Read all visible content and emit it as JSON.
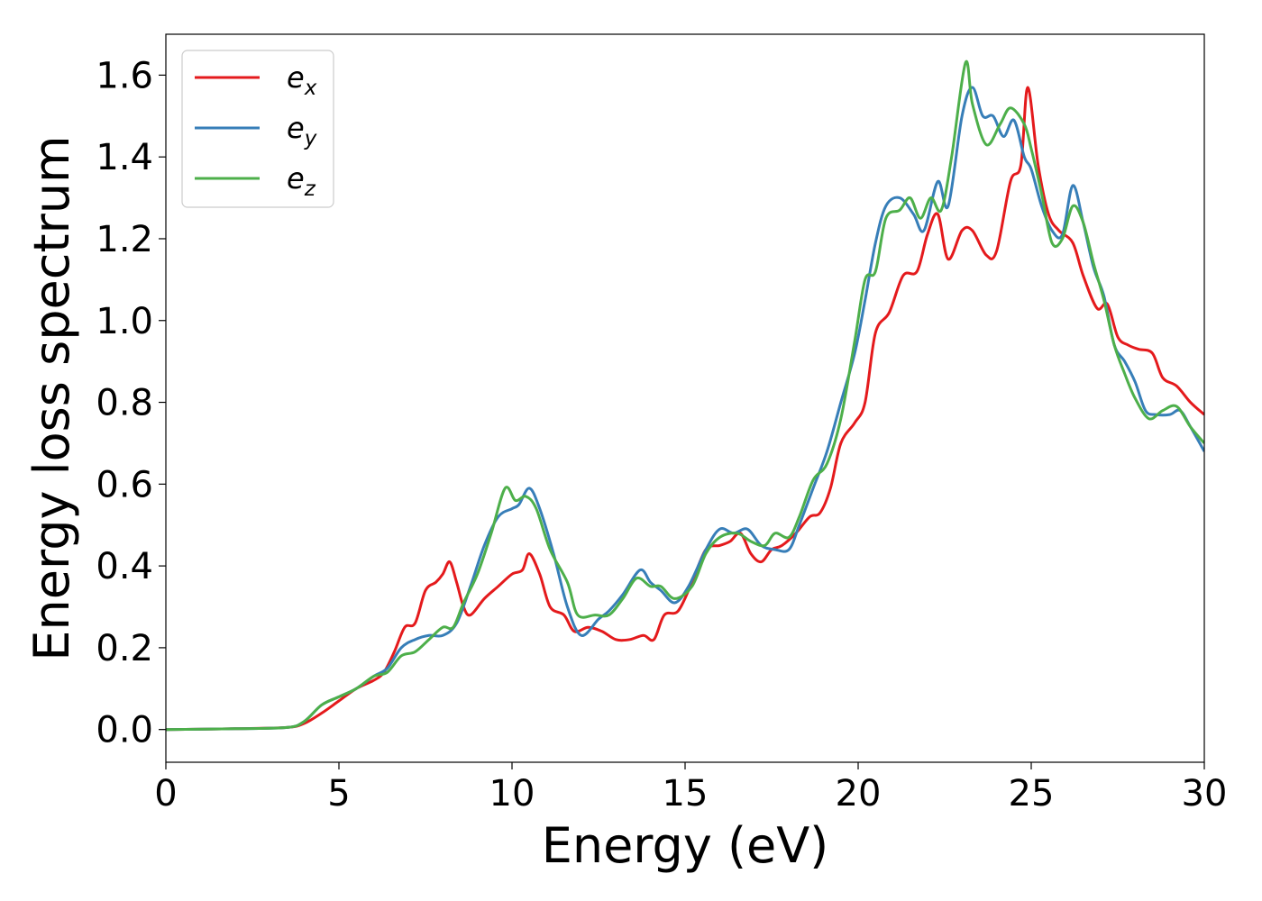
{
  "chart_data": {
    "type": "line",
    "xlabel": "Energy (eV)",
    "ylabel": "Energy loss spectrum",
    "xlim": [
      0,
      30
    ],
    "ylim": [
      -0.08,
      1.7
    ],
    "xticks": [
      0,
      5,
      10,
      15,
      20,
      25,
      30
    ],
    "xtick_labels": [
      "0",
      "5",
      "10",
      "15",
      "20",
      "25",
      "30"
    ],
    "yticks": [
      0.0,
      0.2,
      0.4,
      0.6,
      0.8,
      1.0,
      1.2,
      1.4,
      1.6
    ],
    "ytick_labels": [
      "0.0",
      "0.2",
      "0.4",
      "0.6",
      "0.8",
      "1.0",
      "1.2",
      "1.4",
      "1.6"
    ],
    "grid": false,
    "legend_position": "top-left",
    "series": [
      {
        "name": "e_x",
        "label_base": "e",
        "label_sub": "x",
        "color": "#e41a1c",
        "points": [
          [
            0,
            0.0
          ],
          [
            2,
            0.002
          ],
          [
            3.5,
            0.005
          ],
          [
            4.0,
            0.015
          ],
          [
            4.5,
            0.04
          ],
          [
            5.0,
            0.07
          ],
          [
            5.5,
            0.1
          ],
          [
            6.0,
            0.12
          ],
          [
            6.3,
            0.14
          ],
          [
            6.6,
            0.19
          ],
          [
            6.9,
            0.25
          ],
          [
            7.2,
            0.26
          ],
          [
            7.5,
            0.34
          ],
          [
            7.8,
            0.36
          ],
          [
            8.0,
            0.38
          ],
          [
            8.2,
            0.41
          ],
          [
            8.4,
            0.36
          ],
          [
            8.6,
            0.3
          ],
          [
            8.8,
            0.28
          ],
          [
            9.2,
            0.32
          ],
          [
            9.6,
            0.35
          ],
          [
            10.0,
            0.38
          ],
          [
            10.3,
            0.39
          ],
          [
            10.5,
            0.43
          ],
          [
            10.8,
            0.38
          ],
          [
            11.1,
            0.3
          ],
          [
            11.5,
            0.28
          ],
          [
            11.8,
            0.24
          ],
          [
            12.2,
            0.25
          ],
          [
            12.6,
            0.24
          ],
          [
            13.0,
            0.22
          ],
          [
            13.4,
            0.22
          ],
          [
            13.8,
            0.23
          ],
          [
            14.1,
            0.22
          ],
          [
            14.4,
            0.28
          ],
          [
            14.8,
            0.29
          ],
          [
            15.2,
            0.36
          ],
          [
            15.6,
            0.44
          ],
          [
            16.0,
            0.45
          ],
          [
            16.3,
            0.46
          ],
          [
            16.6,
            0.48
          ],
          [
            16.9,
            0.43
          ],
          [
            17.2,
            0.41
          ],
          [
            17.5,
            0.44
          ],
          [
            17.8,
            0.45
          ],
          [
            18.2,
            0.48
          ],
          [
            18.6,
            0.52
          ],
          [
            18.9,
            0.53
          ],
          [
            19.2,
            0.59
          ],
          [
            19.5,
            0.7
          ],
          [
            19.9,
            0.75
          ],
          [
            20.2,
            0.8
          ],
          [
            20.5,
            0.97
          ],
          [
            20.9,
            1.02
          ],
          [
            21.3,
            1.11
          ],
          [
            21.7,
            1.12
          ],
          [
            22.0,
            1.21
          ],
          [
            22.3,
            1.26
          ],
          [
            22.6,
            1.15
          ],
          [
            23.0,
            1.22
          ],
          [
            23.3,
            1.22
          ],
          [
            23.7,
            1.16
          ],
          [
            24.0,
            1.17
          ],
          [
            24.4,
            1.34
          ],
          [
            24.7,
            1.38
          ],
          [
            24.9,
            1.57
          ],
          [
            25.2,
            1.38
          ],
          [
            25.5,
            1.26
          ],
          [
            25.8,
            1.22
          ],
          [
            26.2,
            1.19
          ],
          [
            26.5,
            1.11
          ],
          [
            26.9,
            1.03
          ],
          [
            27.2,
            1.04
          ],
          [
            27.5,
            0.96
          ],
          [
            27.8,
            0.94
          ],
          [
            28.1,
            0.93
          ],
          [
            28.5,
            0.92
          ],
          [
            28.8,
            0.86
          ],
          [
            29.2,
            0.84
          ],
          [
            29.6,
            0.8
          ],
          [
            30.0,
            0.77
          ]
        ]
      },
      {
        "name": "e_y",
        "label_base": "e",
        "label_sub": "y",
        "color": "#377eb8",
        "points": [
          [
            0,
            0.0
          ],
          [
            2,
            0.002
          ],
          [
            3.5,
            0.005
          ],
          [
            4.0,
            0.02
          ],
          [
            4.5,
            0.06
          ],
          [
            5.0,
            0.08
          ],
          [
            5.5,
            0.1
          ],
          [
            6.0,
            0.13
          ],
          [
            6.4,
            0.15
          ],
          [
            6.8,
            0.2
          ],
          [
            7.2,
            0.22
          ],
          [
            7.6,
            0.23
          ],
          [
            8.0,
            0.23
          ],
          [
            8.4,
            0.26
          ],
          [
            8.8,
            0.35
          ],
          [
            9.2,
            0.45
          ],
          [
            9.6,
            0.52
          ],
          [
            10.0,
            0.54
          ],
          [
            10.2,
            0.55
          ],
          [
            10.5,
            0.59
          ],
          [
            10.8,
            0.54
          ],
          [
            11.2,
            0.43
          ],
          [
            11.6,
            0.3
          ],
          [
            12.0,
            0.23
          ],
          [
            12.5,
            0.27
          ],
          [
            12.8,
            0.29
          ],
          [
            13.2,
            0.33
          ],
          [
            13.7,
            0.39
          ],
          [
            14.0,
            0.36
          ],
          [
            14.3,
            0.34
          ],
          [
            14.7,
            0.31
          ],
          [
            15.1,
            0.35
          ],
          [
            15.6,
            0.44
          ],
          [
            16.0,
            0.49
          ],
          [
            16.4,
            0.48
          ],
          [
            16.8,
            0.49
          ],
          [
            17.2,
            0.45
          ],
          [
            17.6,
            0.44
          ],
          [
            18.0,
            0.44
          ],
          [
            18.3,
            0.5
          ],
          [
            18.7,
            0.59
          ],
          [
            19.1,
            0.68
          ],
          [
            19.5,
            0.8
          ],
          [
            19.9,
            0.92
          ],
          [
            20.2,
            1.05
          ],
          [
            20.5,
            1.19
          ],
          [
            20.8,
            1.28
          ],
          [
            21.2,
            1.3
          ],
          [
            21.6,
            1.26
          ],
          [
            21.9,
            1.22
          ],
          [
            22.3,
            1.34
          ],
          [
            22.6,
            1.28
          ],
          [
            23.0,
            1.5
          ],
          [
            23.3,
            1.57
          ],
          [
            23.6,
            1.5
          ],
          [
            23.9,
            1.5
          ],
          [
            24.2,
            1.45
          ],
          [
            24.5,
            1.49
          ],
          [
            24.8,
            1.4
          ],
          [
            25.0,
            1.37
          ],
          [
            25.3,
            1.28
          ],
          [
            25.6,
            1.22
          ],
          [
            25.9,
            1.21
          ],
          [
            26.2,
            1.33
          ],
          [
            26.5,
            1.24
          ],
          [
            26.8,
            1.13
          ],
          [
            27.1,
            1.06
          ],
          [
            27.4,
            0.94
          ],
          [
            27.7,
            0.9
          ],
          [
            28.0,
            0.85
          ],
          [
            28.3,
            0.78
          ],
          [
            28.6,
            0.77
          ],
          [
            29.0,
            0.77
          ],
          [
            29.3,
            0.78
          ],
          [
            29.6,
            0.74
          ],
          [
            30.0,
            0.68
          ]
        ]
      },
      {
        "name": "e_z",
        "label_base": "e",
        "label_sub": "z",
        "color": "#4daf4a",
        "points": [
          [
            0,
            0.0
          ],
          [
            2,
            0.002
          ],
          [
            3.5,
            0.005
          ],
          [
            4.0,
            0.02
          ],
          [
            4.5,
            0.06
          ],
          [
            5.0,
            0.08
          ],
          [
            5.5,
            0.1
          ],
          [
            6.0,
            0.13
          ],
          [
            6.4,
            0.14
          ],
          [
            6.8,
            0.18
          ],
          [
            7.2,
            0.19
          ],
          [
            7.6,
            0.22
          ],
          [
            8.0,
            0.25
          ],
          [
            8.3,
            0.25
          ],
          [
            8.6,
            0.31
          ],
          [
            9.0,
            0.38
          ],
          [
            9.4,
            0.48
          ],
          [
            9.8,
            0.59
          ],
          [
            10.1,
            0.56
          ],
          [
            10.4,
            0.57
          ],
          [
            10.7,
            0.54
          ],
          [
            11.1,
            0.44
          ],
          [
            11.6,
            0.36
          ],
          [
            11.9,
            0.28
          ],
          [
            12.4,
            0.28
          ],
          [
            12.8,
            0.28
          ],
          [
            13.2,
            0.32
          ],
          [
            13.6,
            0.37
          ],
          [
            14.0,
            0.35
          ],
          [
            14.3,
            0.35
          ],
          [
            14.7,
            0.32
          ],
          [
            15.2,
            0.35
          ],
          [
            15.6,
            0.43
          ],
          [
            16.0,
            0.47
          ],
          [
            16.5,
            0.48
          ],
          [
            16.9,
            0.46
          ],
          [
            17.3,
            0.45
          ],
          [
            17.6,
            0.48
          ],
          [
            18.0,
            0.47
          ],
          [
            18.3,
            0.52
          ],
          [
            18.7,
            0.61
          ],
          [
            19.1,
            0.65
          ],
          [
            19.5,
            0.76
          ],
          [
            19.9,
            0.95
          ],
          [
            20.2,
            1.1
          ],
          [
            20.5,
            1.12
          ],
          [
            20.8,
            1.25
          ],
          [
            21.2,
            1.27
          ],
          [
            21.5,
            1.3
          ],
          [
            21.8,
            1.25
          ],
          [
            22.1,
            1.3
          ],
          [
            22.4,
            1.27
          ],
          [
            22.7,
            1.4
          ],
          [
            23.1,
            1.63
          ],
          [
            23.3,
            1.53
          ],
          [
            23.7,
            1.43
          ],
          [
            24.1,
            1.48
          ],
          [
            24.4,
            1.52
          ],
          [
            24.8,
            1.48
          ],
          [
            25.0,
            1.42
          ],
          [
            25.3,
            1.31
          ],
          [
            25.6,
            1.19
          ],
          [
            25.9,
            1.2
          ],
          [
            26.2,
            1.28
          ],
          [
            26.5,
            1.24
          ],
          [
            26.8,
            1.14
          ],
          [
            27.1,
            1.05
          ],
          [
            27.4,
            0.94
          ],
          [
            27.7,
            0.87
          ],
          [
            28.0,
            0.81
          ],
          [
            28.4,
            0.76
          ],
          [
            28.8,
            0.78
          ],
          [
            29.2,
            0.79
          ],
          [
            29.6,
            0.74
          ],
          [
            30.0,
            0.7
          ]
        ]
      }
    ]
  }
}
